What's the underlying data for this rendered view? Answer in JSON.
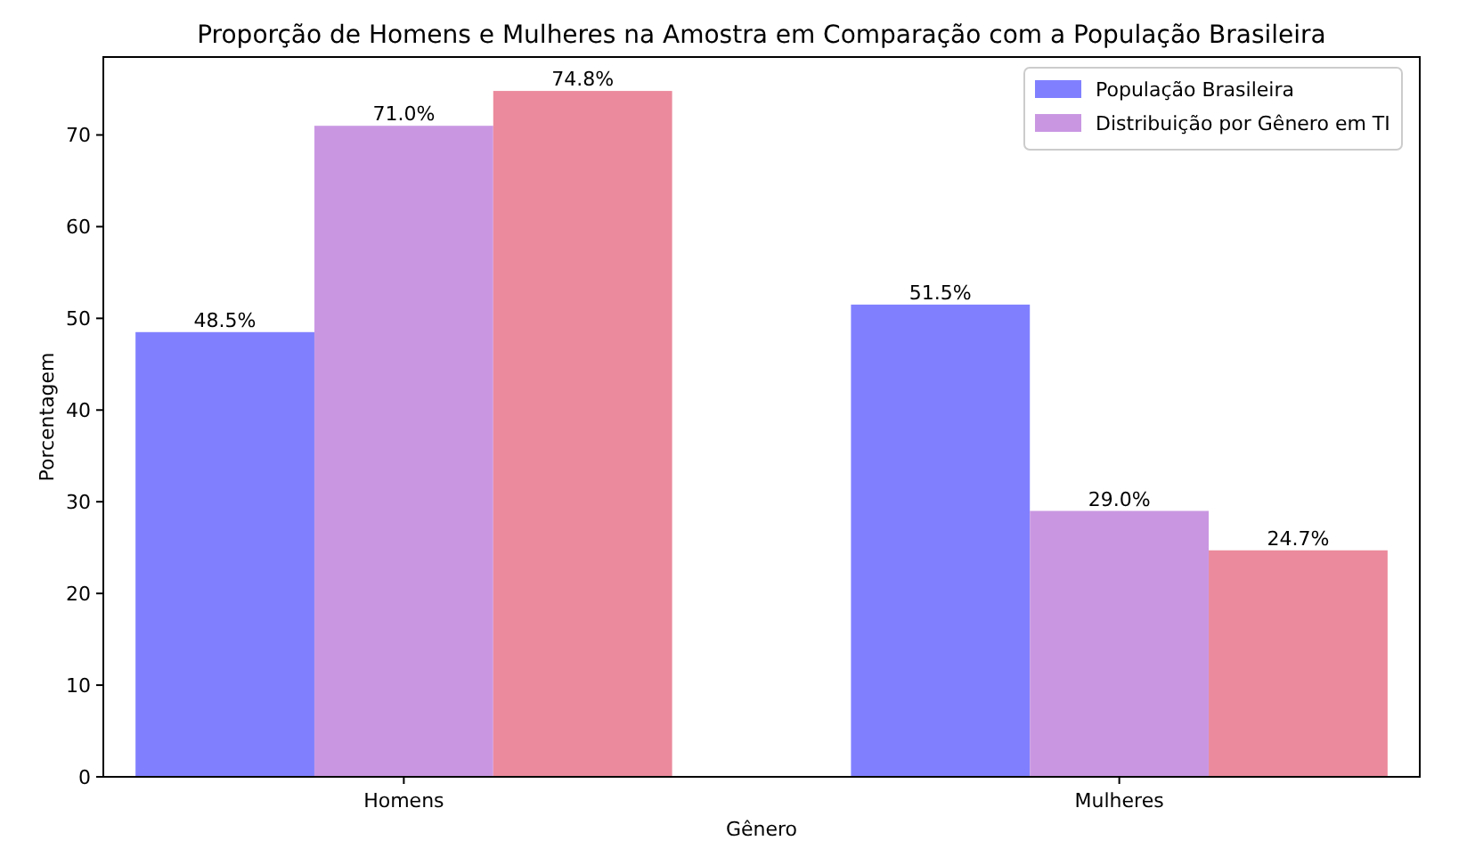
{
  "chart_data": {
    "type": "bar",
    "title": "Proporção de Homens e Mulheres na Amostra em Comparação com a População Brasileira",
    "xlabel": "Gênero",
    "ylabel": "Porcentagem",
    "categories": [
      "Homens",
      "Mulheres"
    ],
    "series": [
      {
        "name": "População Brasileira",
        "color": "#8080ff",
        "values": [
          48.5,
          51.5
        ],
        "value_labels": [
          "48.5%",
          "51.5%"
        ]
      },
      {
        "name": "Distribuição por Gênero em TI",
        "color": "#c997e2",
        "values": [
          71.0,
          29.0
        ],
        "value_labels": [
          "71.0%",
          "29.0%"
        ]
      },
      {
        "color": "#eb8a9c",
        "values": [
          74.8,
          24.7
        ],
        "value_labels": [
          "74.8%",
          "24.7%"
        ]
      }
    ],
    "ylim": [
      0,
      78.5
    ],
    "yticks": [
      0,
      10,
      20,
      30,
      40,
      50,
      60,
      70
    ],
    "grid": false,
    "legend": "top right"
  }
}
